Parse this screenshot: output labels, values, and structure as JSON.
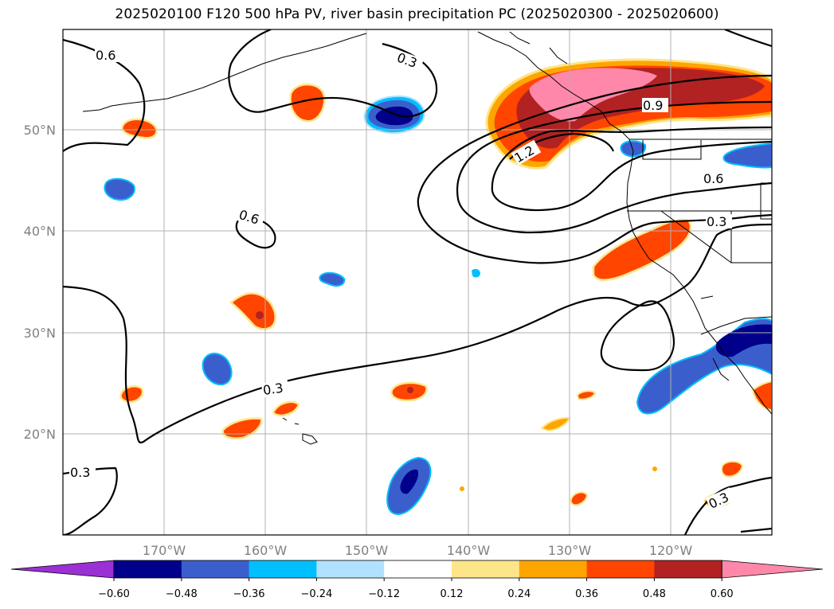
{
  "title": "2025020100 F120 500 hPa PV, river basin precipitation PC (2025020300 - 2025020600)",
  "lon_ticks": [
    "170°W",
    "160°W",
    "150°W",
    "140°W",
    "130°W",
    "120°W"
  ],
  "lat_ticks": [
    "50°N",
    "40°N",
    "30°N",
    "20°N"
  ],
  "contour_labels": [
    "0.6",
    "0.3",
    "0.6",
    "0.9",
    "1.2",
    "0.6",
    "0.3",
    "0.3",
    "0.3",
    "0.3"
  ],
  "colorbar": {
    "ticks": [
      "−0.60",
      "−0.48",
      "−0.36",
      "−0.24",
      "−0.12",
      "0.12",
      "0.24",
      "0.36",
      "0.48",
      "0.60"
    ],
    "colors": [
      "#9b30d4",
      "#00008b",
      "#3a5fcd",
      "#00bfff",
      "#b0e2ff",
      "#ffffff",
      "#fde68a",
      "#ffa500",
      "#ff4500",
      "#b22222",
      "#ff88aa"
    ]
  },
  "colors": {
    "deep_blue": "#00008b",
    "mid_blue": "#3a5fcd",
    "light_blue": "#00bfff",
    "pale_blue": "#b0e2ff",
    "yellow": "#fde68a",
    "orange": "#ffa500",
    "red_orange": "#ff4500",
    "dark_red": "#b22222",
    "pink": "#ff88aa"
  }
}
